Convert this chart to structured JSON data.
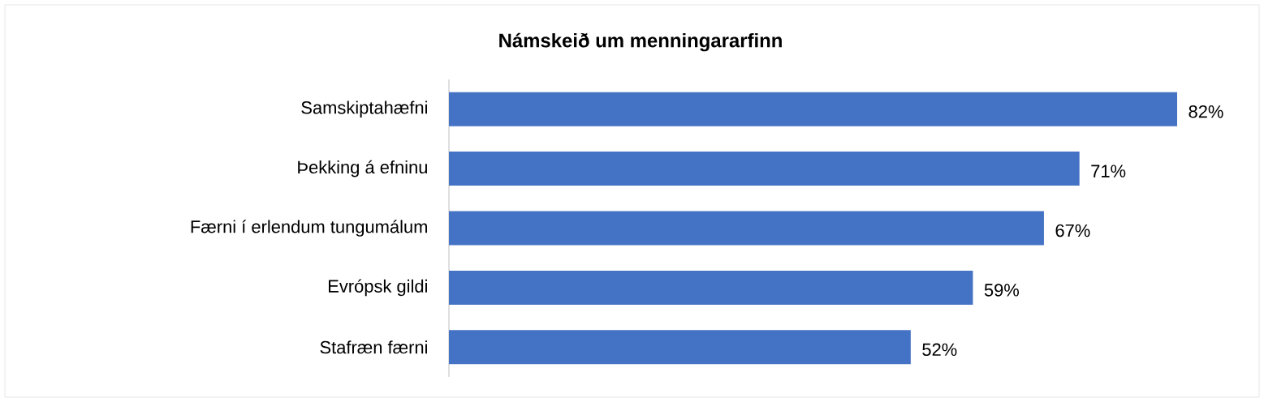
{
  "chart_data": {
    "type": "bar",
    "orientation": "horizontal",
    "title": "Námskeið um menningararfinn",
    "categories": [
      "Samskiptahæfni",
      "Þekking á efninu",
      "Færni í erlendum tungumálum",
      "Evrópsk gildi",
      "Stafræn færni"
    ],
    "values": [
      82,
      71,
      67,
      59,
      52
    ],
    "value_labels": [
      "82%",
      "71%",
      "67%",
      "59%",
      "52%"
    ],
    "color": "#4472c4"
  }
}
